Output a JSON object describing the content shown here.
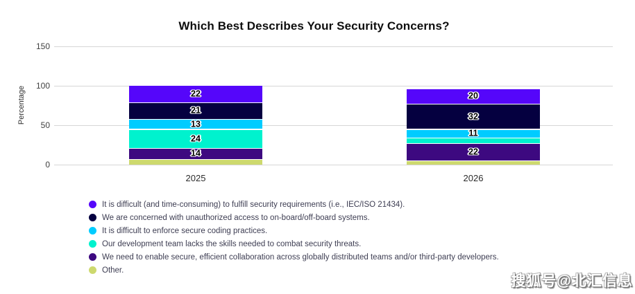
{
  "page": {
    "watermark": "搜狐号@北汇信息"
  },
  "chart_data": {
    "type": "bar",
    "stacked": true,
    "title": "Which Best Describes Your Security Concerns?",
    "xlabel": "",
    "ylabel": "Percentage",
    "categories": [
      "2025",
      "2026"
    ],
    "series": [
      {
        "name": "It is difficult (and time-consuming) to fulfill security requirements (i.e., IEC/ISO 21434).",
        "color": "#5506FA",
        "values": [
          22,
          20
        ]
      },
      {
        "name": "We are concerned with unauthorized access to on-board/off-board systems.",
        "color": "#050040",
        "values": [
          21,
          32
        ]
      },
      {
        "name": "It is difficult to enforce secure coding practices.",
        "color": "#00CCFF",
        "values": [
          13,
          11
        ]
      },
      {
        "name": "Our development team lacks the skills needed to combat security threats.",
        "color": "#00F2CE",
        "values": [
          24,
          7
        ]
      },
      {
        "name": "We need to enable secure, efficient collaboration across globally distributed teams and/or third-party developers.",
        "color": "#3D0980",
        "values": [
          14,
          22
        ]
      },
      {
        "name": "Other.",
        "color": "#CDD96E",
        "values": [
          6,
          4
        ]
      }
    ],
    "ylim": [
      0,
      150
    ],
    "yticks": [
      0,
      50,
      100,
      150
    ],
    "grid": true,
    "label_min_value": 10,
    "legend_position": "bottom-left",
    "note": "Unlabeled thin segments (values below label threshold) estimated from pixel heights."
  }
}
